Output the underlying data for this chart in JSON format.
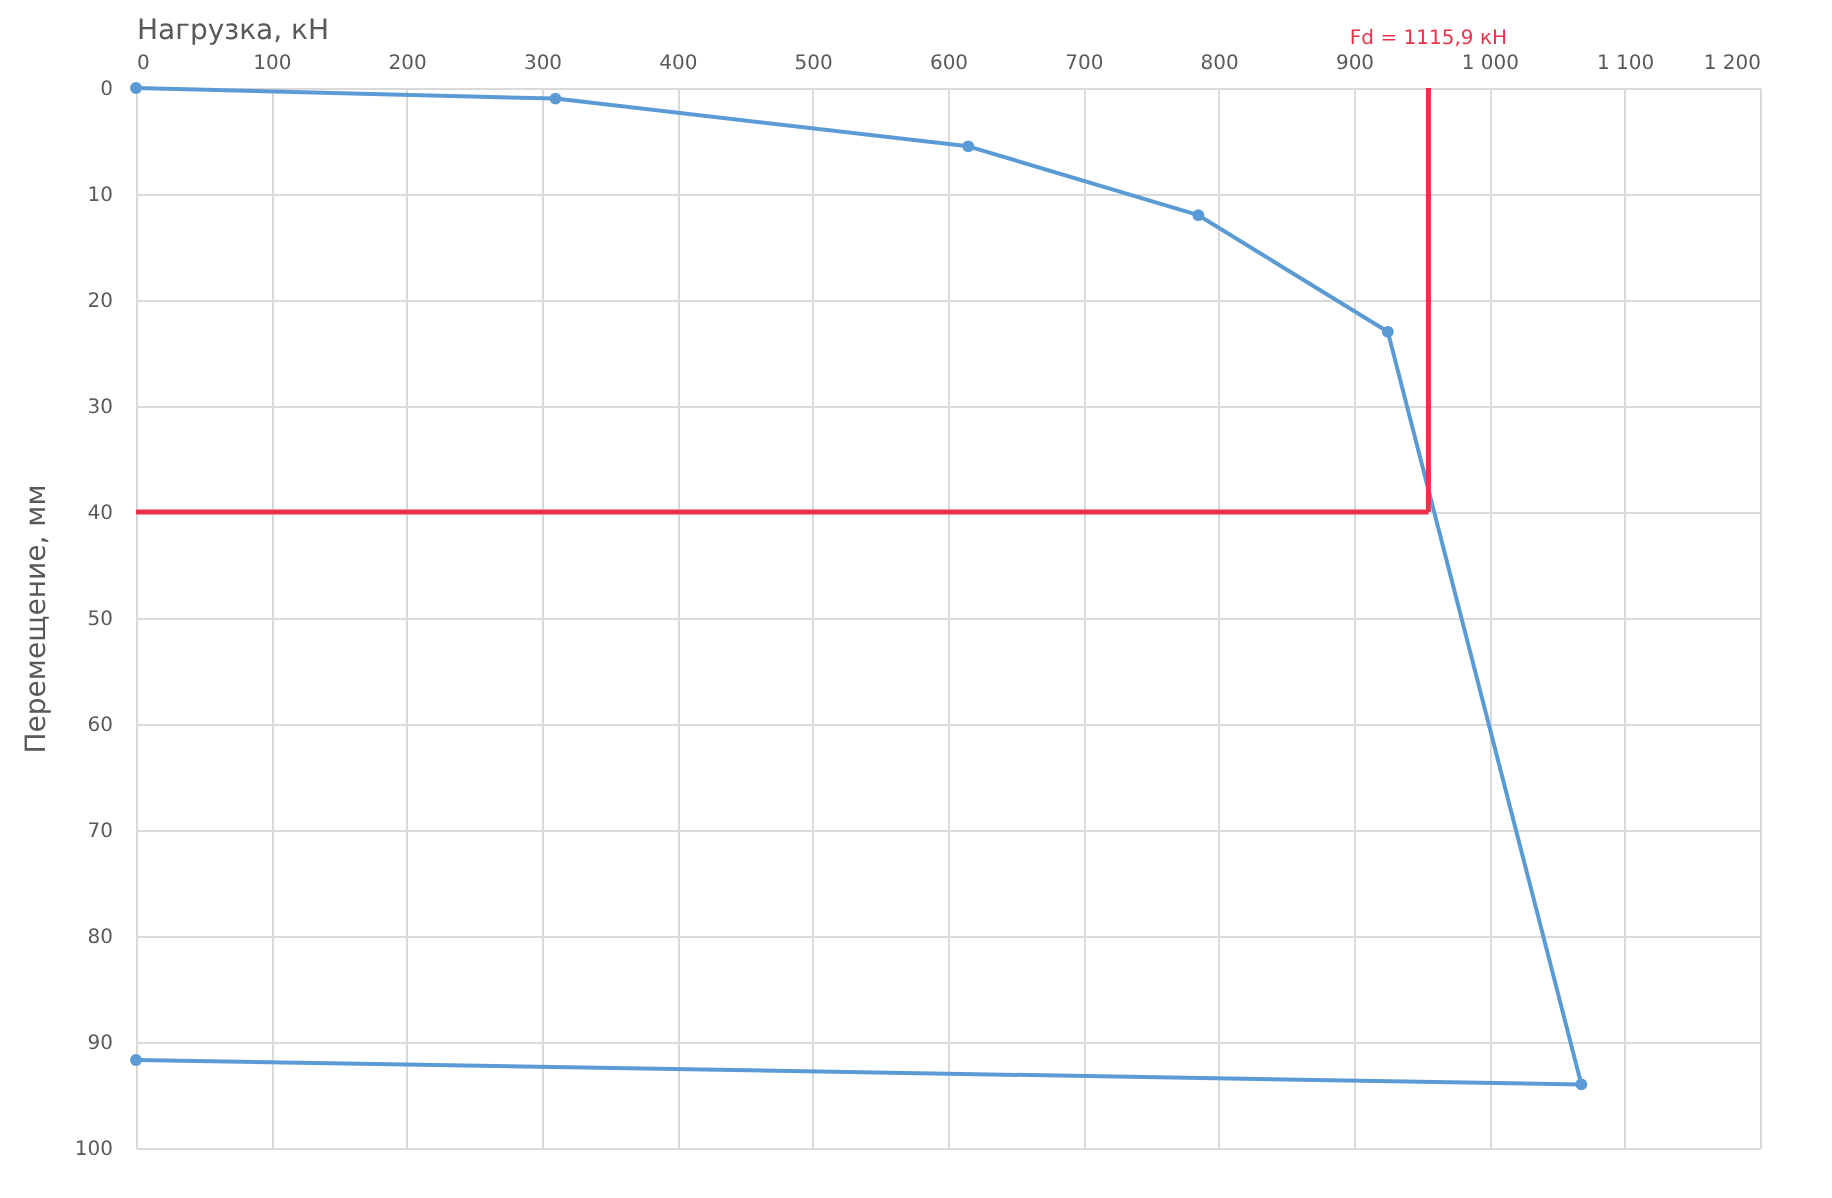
{
  "chart_data": {
    "type": "line",
    "xlabel": "Нагрузка, кН",
    "ylabel": "Перемещение, мм",
    "x": [
      0,
      310,
      615,
      785,
      925,
      1068,
      0
    ],
    "series": [
      {
        "color": "#5b9bd5",
        "values": [
          0,
          1,
          5.5,
          12,
          23,
          94,
          91.7
        ]
      }
    ],
    "xlim": [
      0,
      1200
    ],
    "xticks": [
      0,
      100,
      200,
      300,
      400,
      500,
      600,
      700,
      800,
      900,
      {
        "value": 1000,
        "label": "1 000"
      },
      {
        "value": 1100,
        "label": "1 100"
      },
      {
        "value": 1200,
        "label": "1 200"
      }
    ],
    "ylim": [
      100,
      0
    ],
    "yticks": [
      0,
      10,
      20,
      30,
      40,
      50,
      60,
      70,
      80,
      90,
      100
    ],
    "annotations": [
      "Fd = 1115,9 кН"
    ],
    "ref_lines": [
      {
        "axis": "x",
        "value": 955,
        "label": null,
        "color": "#e8334a"
      },
      {
        "axis": "y",
        "value": 40,
        "label": null,
        "color": "#e8334a"
      }
    ],
    "grid": true,
    "marker": "circle",
    "line_style": "solid"
  }
}
